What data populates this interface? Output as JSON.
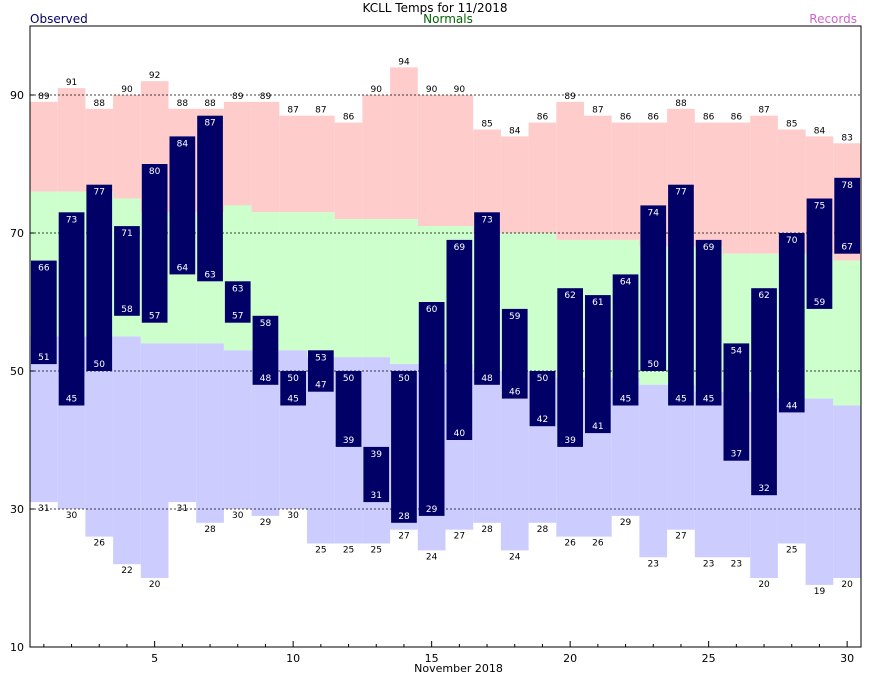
{
  "chart_data": {
    "type": "bar",
    "title": "KCLL Temps for 11/2018",
    "xlabel": "November 2018",
    "ylabel": "",
    "ylim": [
      10,
      100
    ],
    "y_ticks": [
      10,
      30,
      50,
      70,
      90
    ],
    "x_ticks": [
      5,
      10,
      15,
      20,
      25,
      30
    ],
    "legend": {
      "observed": "Observed",
      "normals": "Normals",
      "records": "Records"
    },
    "colors": {
      "observed": "#000066",
      "normals_band": "#ccffcc",
      "record_high_band": "#ffcccc",
      "record_low_band": "#ccccff",
      "normals_text": "#006600",
      "records_text": "#cc66cc",
      "observed_text": "#000066"
    },
    "days": [
      1,
      2,
      3,
      4,
      5,
      6,
      7,
      8,
      9,
      10,
      11,
      12,
      13,
      14,
      15,
      16,
      17,
      18,
      19,
      20,
      21,
      22,
      23,
      24,
      25,
      26,
      27,
      28,
      29,
      30
    ],
    "observed_high": [
      66,
      73,
      77,
      71,
      80,
      84,
      87,
      63,
      58,
      50,
      53,
      50,
      39,
      50,
      60,
      69,
      73,
      59,
      50,
      62,
      61,
      64,
      74,
      77,
      69,
      54,
      62,
      70,
      75,
      78
    ],
    "observed_low": [
      51,
      45,
      50,
      58,
      57,
      64,
      63,
      57,
      48,
      45,
      47,
      39,
      31,
      28,
      29,
      40,
      48,
      46,
      42,
      39,
      41,
      45,
      50,
      45,
      45,
      37,
      32,
      44,
      59,
      67
    ],
    "record_high": [
      89,
      91,
      88,
      90,
      92,
      88,
      88,
      89,
      89,
      87,
      87,
      86,
      90,
      94,
      90,
      90,
      85,
      84,
      86,
      89,
      87,
      86,
      86,
      88,
      86,
      86,
      87,
      85,
      84,
      83
    ],
    "record_low": [
      31,
      30,
      26,
      22,
      20,
      31,
      28,
      30,
      29,
      30,
      25,
      25,
      25,
      27,
      24,
      27,
      28,
      24,
      28,
      26,
      26,
      29,
      23,
      27,
      23,
      23,
      20,
      25,
      19,
      20
    ],
    "normal_high": [
      76,
      76,
      76,
      75,
      73,
      73,
      73,
      74,
      73,
      73,
      73,
      72,
      72,
      72,
      71,
      71,
      70,
      70,
      70,
      69,
      69,
      69,
      68,
      68,
      68,
      67,
      67,
      67,
      67,
      66
    ],
    "normal_low": [
      55,
      55,
      55,
      55,
      54,
      54,
      54,
      53,
      53,
      53,
      52,
      52,
      52,
      51,
      51,
      51,
      50,
      50,
      50,
      49,
      49,
      49,
      48,
      48,
      47,
      47,
      47,
      46,
      46,
      45
    ]
  }
}
